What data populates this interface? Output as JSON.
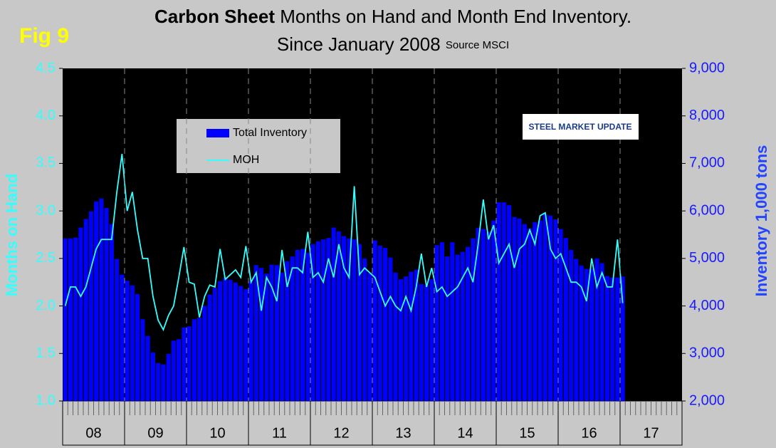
{
  "chart_data": {
    "type": "bar_line",
    "title_bold": "Carbon Sheet",
    "title": "Months on Hand and Month End Inventory.",
    "subtitle": "Since January 2008",
    "source": "Source MSCI",
    "figure_label": "Fig 9",
    "logo": "STEEL MARKET UPDATE",
    "ylabel": "Months on Hand",
    "y2label": "Inventory 1,000 tons",
    "year_labels": [
      "08",
      "09",
      "10",
      "11",
      "12",
      "13",
      "14",
      "15",
      "16",
      "17"
    ],
    "ylim": [
      1.0,
      4.5
    ],
    "yticks": [
      {
        "value": 1.0,
        "label": "1.0"
      },
      {
        "value": 1.5,
        "label": "1.5"
      },
      {
        "value": 2.0,
        "label": "2.0"
      },
      {
        "value": 2.5,
        "label": "2.5"
      },
      {
        "value": 3.0,
        "label": "3.0"
      },
      {
        "value": 3.5,
        "label": "3.5"
      },
      {
        "value": 4.0,
        "label": "4.0"
      },
      {
        "value": 4.5,
        "label": "4.5"
      }
    ],
    "y2lim": [
      2000,
      9000
    ],
    "y2ticks": [
      {
        "value": 2000,
        "label": "2,000"
      },
      {
        "value": 3000,
        "label": "3,000"
      },
      {
        "value": 4000,
        "label": "4,000"
      },
      {
        "value": 5000,
        "label": "5,000"
      },
      {
        "value": 6000,
        "label": "6,000"
      },
      {
        "value": 7000,
        "label": "7,000"
      },
      {
        "value": 8000,
        "label": "8,000"
      },
      {
        "value": 9000,
        "label": "9,000"
      }
    ],
    "series": [
      {
        "name": "Total Inventory",
        "color": "#0000ff",
        "axis": "y2",
        "kind": "bar",
        "values": [
          5420,
          5420,
          5440,
          5650,
          5830,
          5990,
          6200,
          6260,
          6060,
          5720,
          4990,
          4660,
          4530,
          4430,
          4250,
          3720,
          3370,
          3020,
          2800,
          2770,
          2990,
          3270,
          3300,
          3550,
          3570,
          3720,
          3750,
          4000,
          4240,
          4380,
          4520,
          4600,
          4550,
          4490,
          4420,
          4350,
          4520,
          4860,
          4800,
          4680,
          4870,
          4860,
          4700,
          4940,
          5040,
          5180,
          5200,
          5120,
          5300,
          5360,
          5400,
          5430,
          5650,
          5570,
          5470,
          5420,
          5400,
          5300,
          5000,
          4700,
          5380,
          5270,
          5220,
          5020,
          4700,
          4560,
          4620,
          4720,
          4760,
          4460,
          4440,
          4560,
          5280,
          5340,
          5040,
          5340,
          5080,
          5140,
          5240,
          5420,
          5640,
          5620,
          5560,
          5800,
          6180,
          6180,
          6120,
          5870,
          5840,
          5720,
          5630,
          5760,
          5800,
          5930,
          5900,
          5820,
          5620,
          5430,
          5180,
          4990,
          4850,
          4780,
          4780,
          5000,
          4900,
          4630,
          4600,
          4600,
          4620
        ]
      },
      {
        "name": "MOH",
        "color": "#33ffff",
        "axis": "y",
        "kind": "line",
        "values": [
          2.0,
          2.2,
          2.2,
          2.1,
          2.2,
          2.4,
          2.6,
          2.7,
          2.7,
          2.7,
          3.2,
          3.6,
          3.0,
          3.2,
          2.8,
          2.5,
          2.5,
          2.1,
          1.85,
          1.75,
          1.9,
          2.0,
          2.3,
          2.62,
          2.25,
          2.23,
          1.88,
          2.1,
          2.22,
          2.2,
          2.6,
          2.28,
          2.33,
          2.38,
          2.3,
          2.63,
          2.25,
          2.35,
          1.95,
          2.3,
          2.2,
          2.05,
          2.59,
          2.2,
          2.4,
          2.4,
          2.35,
          2.78,
          2.3,
          2.35,
          2.25,
          2.5,
          2.3,
          2.65,
          2.4,
          2.3,
          3.26,
          2.33,
          2.4,
          2.35,
          2.3,
          2.15,
          2.0,
          2.1,
          2.0,
          1.95,
          2.1,
          1.95,
          2.2,
          2.55,
          2.2,
          2.4,
          2.15,
          2.2,
          2.1,
          2.15,
          2.2,
          2.3,
          2.4,
          2.25,
          2.65,
          3.12,
          2.7,
          2.85,
          2.45,
          2.55,
          2.65,
          2.4,
          2.6,
          2.65,
          2.8,
          2.65,
          2.95,
          2.98,
          2.6,
          2.5,
          2.55,
          2.4,
          2.25,
          2.25,
          2.2,
          2.05,
          2.5,
          2.2,
          2.35,
          2.2,
          2.2,
          2.7,
          2.03
        ]
      }
    ]
  }
}
